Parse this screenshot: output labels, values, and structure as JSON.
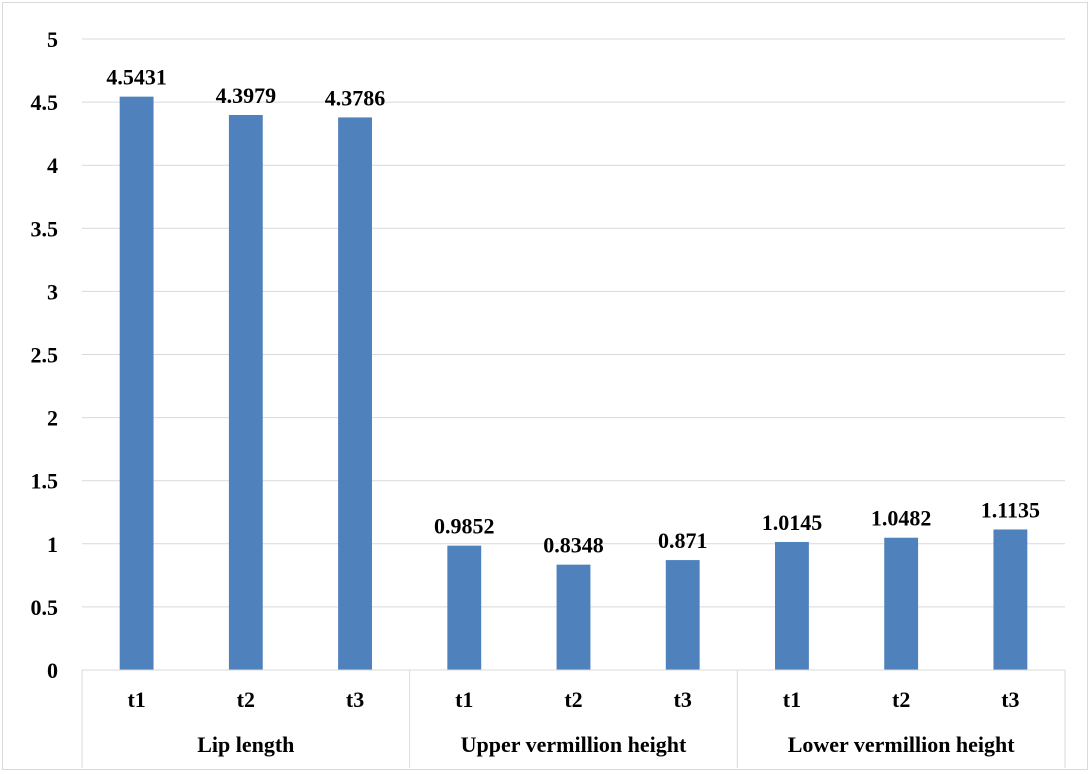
{
  "chart_data": {
    "type": "bar",
    "title": "",
    "xlabel": "",
    "ylabel": "",
    "ylim": [
      0,
      5
    ],
    "yticks": [
      "0",
      "0.5",
      "1",
      "1.5",
      "2",
      "2.5",
      "3",
      "3.5",
      "4",
      "4.5",
      "5"
    ],
    "ytick_values": [
      0,
      0.5,
      1,
      1.5,
      2,
      2.5,
      3,
      3.5,
      4,
      4.5,
      5
    ],
    "grid": true,
    "bar_color": "#4f81bd",
    "groups": [
      {
        "name": "Lip length",
        "categories": [
          "t1",
          "t2",
          "t3"
        ],
        "values": [
          4.5431,
          4.3979,
          4.3786
        ],
        "labels": [
          "4.5431",
          "4.3979",
          "4.3786"
        ]
      },
      {
        "name": "Upper vermillion height",
        "categories": [
          "t1",
          "t2",
          "t3"
        ],
        "values": [
          0.9852,
          0.8348,
          0.871
        ],
        "labels": [
          "0.9852",
          "0.8348",
          "0.871"
        ]
      },
      {
        "name": "Lower vermillion height",
        "categories": [
          "t1",
          "t2",
          "t3"
        ],
        "values": [
          1.0145,
          1.0482,
          1.1135
        ],
        "labels": [
          "1.0145",
          "1.0482",
          "1.1135"
        ]
      }
    ]
  }
}
